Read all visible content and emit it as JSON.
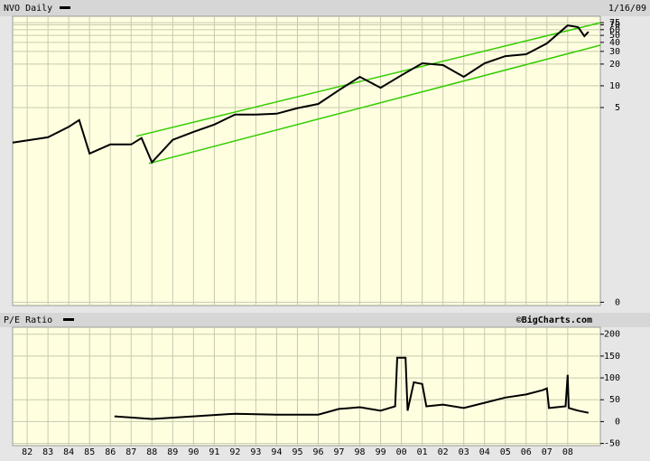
{
  "chart_data": [
    {
      "type": "line",
      "title": "NVO Daily",
      "date": "1/16/09",
      "log_scale": true,
      "grid": true,
      "xlim": [
        1981.3,
        2009.57
      ],
      "ylim": [
        0.009,
        92
      ],
      "yticks": [
        {
          "value": 0.01,
          "label": "0"
        },
        5,
        10,
        20,
        30,
        40,
        50,
        60,
        70,
        75
      ],
      "color": "#000000",
      "x": [
        1981.3,
        1983,
        1984,
        1984.5,
        1985,
        1986,
        1987,
        1987.5,
        1988,
        1989,
        1990,
        1991,
        1992,
        1993,
        1994,
        1995,
        1996,
        1997,
        1998,
        1999,
        2000,
        2001,
        2002,
        2003,
        2004,
        2005,
        2006,
        2007,
        2008,
        2008.5,
        2008.8,
        2009
      ],
      "values": [
        1.63,
        1.93,
        2.7,
        3.35,
        1.15,
        1.54,
        1.54,
        1.89,
        0.87,
        1.78,
        2.3,
        2.9,
        4.0,
        4.0,
        4.1,
        4.9,
        5.6,
        8.7,
        13.3,
        9.4,
        14,
        20.5,
        19.4,
        13.3,
        20.5,
        25.8,
        27.4,
        38.7,
        68.8,
        65,
        48.7,
        56
      ],
      "channel_color": "#33cc00",
      "channel_lines": [
        {
          "x": [
            1987.25,
            2009.57
          ],
          "values": [
            2.0,
            75.0
          ]
        },
        {
          "x": [
            1987.85,
            2009.57
          ],
          "values": [
            0.84,
            36.5
          ]
        }
      ]
    },
    {
      "type": "line",
      "title": "P/E Ratio",
      "source": "©BigCharts.com",
      "grid": true,
      "xlim": [
        1981.3,
        2009.57
      ],
      "ylim": [
        -55,
        216
      ],
      "yticks": [
        -50,
        0,
        50,
        100,
        150,
        200
      ],
      "xticks": [
        {
          "value": 1982,
          "label": "82"
        },
        {
          "value": 1983,
          "label": "83"
        },
        {
          "value": 1984,
          "label": "84"
        },
        {
          "value": 1985,
          "label": "85"
        },
        {
          "value": 1986,
          "label": "86"
        },
        {
          "value": 1987,
          "label": "87"
        },
        {
          "value": 1988,
          "label": "88"
        },
        {
          "value": 1989,
          "label": "89"
        },
        {
          "value": 1990,
          "label": "90"
        },
        {
          "value": 1991,
          "label": "91"
        },
        {
          "value": 1992,
          "label": "92"
        },
        {
          "value": 1993,
          "label": "93"
        },
        {
          "value": 1994,
          "label": "94"
        },
        {
          "value": 1995,
          "label": "95"
        },
        {
          "value": 1996,
          "label": "96"
        },
        {
          "value": 1997,
          "label": "97"
        },
        {
          "value": 1998,
          "label": "98"
        },
        {
          "value": 1999,
          "label": "99"
        },
        {
          "value": 2000,
          "label": "00"
        },
        {
          "value": 2001,
          "label": "01"
        },
        {
          "value": 2002,
          "label": "02"
        },
        {
          "value": 2003,
          "label": "03"
        },
        {
          "value": 2004,
          "label": "04"
        },
        {
          "value": 2005,
          "label": "05"
        },
        {
          "value": 2006,
          "label": "06"
        },
        {
          "value": 2007,
          "label": "07"
        },
        {
          "value": 2008,
          "label": "08"
        }
      ],
      "color": "#000000",
      "x": [
        1986.2,
        1988,
        1990,
        1992,
        1994,
        1996,
        1997,
        1998,
        1999,
        1999.7,
        1999.8,
        2000.2,
        2000.3,
        2000.6,
        2001,
        2001.2,
        2002,
        2003,
        2004,
        2005,
        2006,
        2006.8,
        2007,
        2007.1,
        2007.9,
        2008,
        2008.05,
        2008.5,
        2009
      ],
      "values": [
        12,
        6,
        12,
        18,
        16,
        16,
        29,
        33,
        25,
        35,
        146,
        146,
        25,
        90,
        86,
        35,
        39,
        31,
        43,
        55,
        62,
        72,
        76,
        31,
        35,
        107,
        31,
        25,
        20
      ]
    }
  ]
}
